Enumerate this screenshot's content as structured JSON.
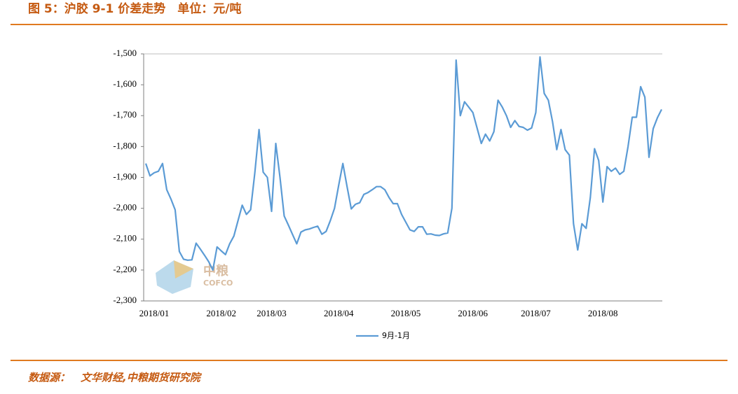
{
  "header": {
    "title": "图 5：沪胶 9-1 价差走势　单位：元/吨"
  },
  "watermark": {
    "name": "中粮",
    "brand": "COFCO"
  },
  "chart_data": {
    "type": "line",
    "categories": [
      null,
      null,
      "2018/01",
      null,
      null,
      null,
      null,
      null,
      null,
      null,
      null,
      null,
      null,
      null,
      null,
      null,
      null,
      null,
      "2018/02",
      null,
      null,
      null,
      null,
      null,
      null,
      null,
      null,
      null,
      null,
      null,
      "2018/03",
      null,
      null,
      null,
      null,
      null,
      null,
      null,
      null,
      null,
      null,
      null,
      null,
      null,
      null,
      null,
      "2018/04",
      null,
      null,
      null,
      null,
      null,
      null,
      null,
      null,
      null,
      null,
      null,
      null,
      null,
      null,
      null,
      "2018/05",
      null,
      null,
      null,
      null,
      null,
      null,
      null,
      null,
      null,
      null,
      null,
      null,
      null,
      null,
      null,
      "2018/06",
      null,
      null,
      null,
      null,
      null,
      null,
      null,
      null,
      null,
      null,
      null,
      null,
      null,
      null,
      "2018/07",
      null,
      null,
      null,
      null,
      null,
      null,
      null,
      null,
      null,
      null,
      null,
      null,
      null,
      null,
      null,
      "2018/08",
      null,
      null,
      null,
      null,
      null,
      null,
      null,
      null,
      null,
      null,
      null,
      null,
      null,
      null
    ],
    "series": [
      {
        "name": "9月-1月",
        "color": "#5b9bd5",
        "values": [
          -1855,
          -1895,
          -1885,
          -1880,
          -1855,
          -1940,
          -1970,
          -2005,
          -2140,
          -2165,
          -2168,
          -2167,
          -2113,
          -2132,
          -2152,
          -2173,
          -2200,
          -2125,
          -2138,
          -2150,
          -2115,
          -2090,
          -2040,
          -1990,
          -2020,
          -2005,
          -1885,
          -1745,
          -1883,
          -1900,
          -2010,
          -1790,
          -1900,
          -2025,
          -2054,
          -2085,
          -2115,
          -2077,
          -2070,
          -2067,
          -2062,
          -2058,
          -2084,
          -2075,
          -2040,
          -2000,
          -1925,
          -1855,
          -1930,
          -2002,
          -1987,
          -1982,
          -1955,
          -1949,
          -1940,
          -1930,
          -1930,
          -1940,
          -1965,
          -1985,
          -1985,
          -2020,
          -2045,
          -2070,
          -2075,
          -2060,
          -2060,
          -2084,
          -2083,
          -2087,
          -2088,
          -2083,
          -2080,
          -2000,
          -1520,
          -1700,
          -1655,
          -1672,
          -1690,
          -1740,
          -1790,
          -1760,
          -1782,
          -1752,
          -1650,
          -1672,
          -1700,
          -1738,
          -1716,
          -1735,
          -1738,
          -1747,
          -1740,
          -1690,
          -1510,
          -1628,
          -1650,
          -1720,
          -1810,
          -1745,
          -1810,
          -1828,
          -2050,
          -2135,
          -2050,
          -2065,
          -1965,
          -1807,
          -1845,
          -1980,
          -1865,
          -1880,
          -1870,
          -1890,
          -1880,
          -1800,
          -1705,
          -1705,
          -1606,
          -1640,
          -1835,
          -1742,
          -1707,
          -1680
        ]
      }
    ],
    "ylim": [
      -2300,
      -1500
    ],
    "yticks": [
      {
        "value": -2300,
        "label": "-2,300"
      },
      {
        "value": -2200,
        "label": "-2,200"
      },
      {
        "value": -2100,
        "label": "-2,100"
      },
      {
        "value": -2000,
        "label": "-2,000"
      },
      {
        "value": -1900,
        "label": "-1,900"
      },
      {
        "value": -1800,
        "label": "-1,800"
      },
      {
        "value": -1700,
        "label": "-1,700"
      },
      {
        "value": -1600,
        "label": "-1,600"
      },
      {
        "value": -1500,
        "label": "-1,500"
      }
    ],
    "grid": false
  },
  "footer": {
    "source": "数据源：　文华财经,中粮期货研究院"
  }
}
